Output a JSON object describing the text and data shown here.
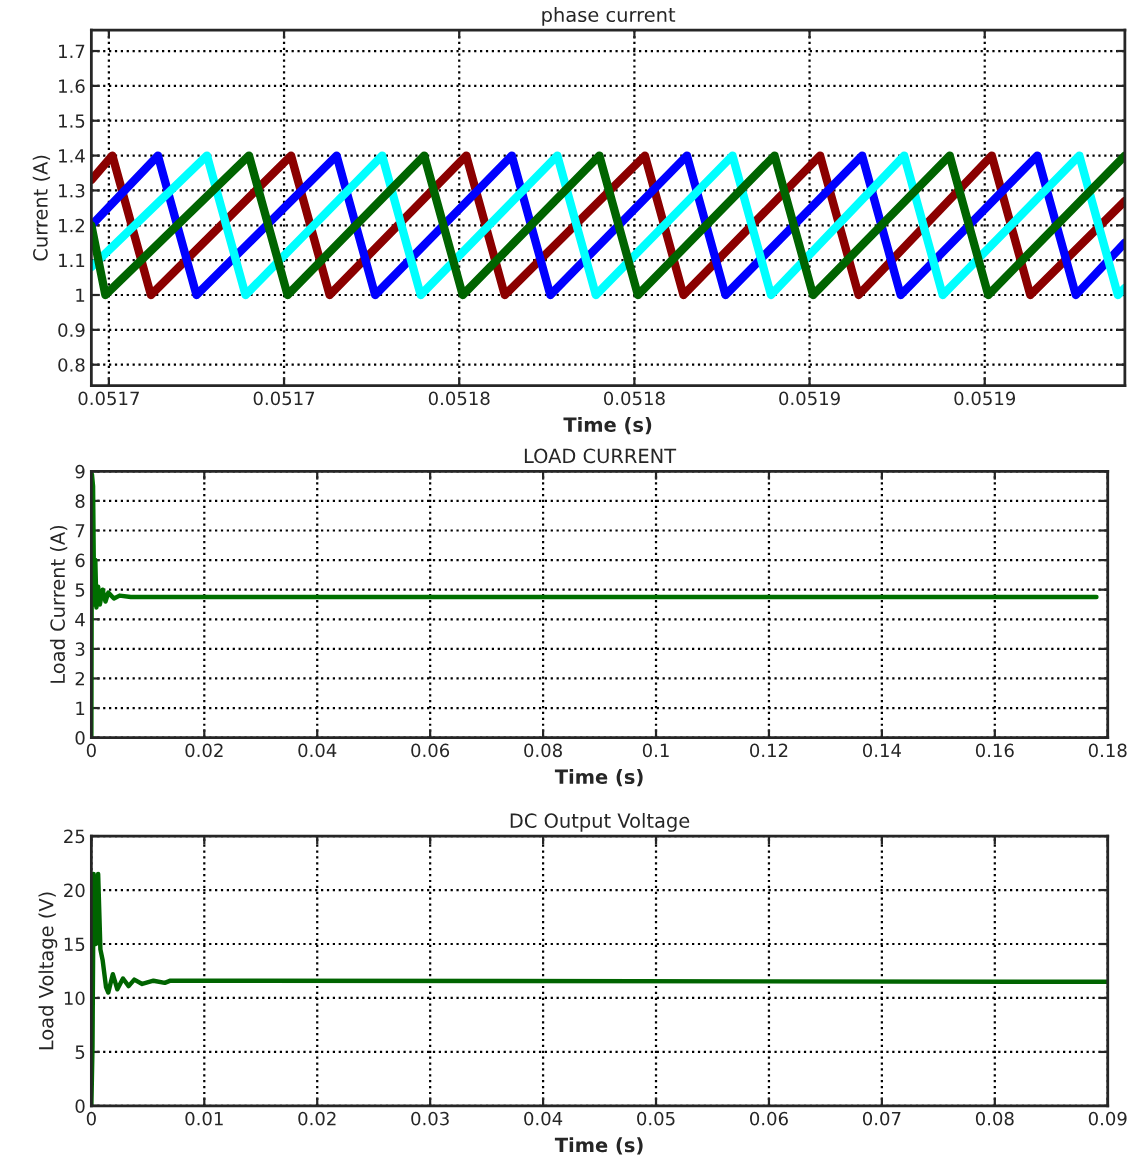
{
  "chart_data": [
    {
      "type": "line",
      "title": "phase current",
      "xlabel": "Time (s)",
      "ylabel": "Current (A)",
      "grid": true,
      "xlim": [
        0.051695,
        0.05199
      ],
      "xticks": [
        {
          "value": 0.0517,
          "label": "0.0517"
        },
        {
          "value": 0.05175,
          "label": "0.0517"
        },
        {
          "value": 0.0518,
          "label": "0.0518"
        },
        {
          "value": 0.05185,
          "label": "0.0518"
        },
        {
          "value": 0.0519,
          "label": "0.0519"
        },
        {
          "value": 0.05195,
          "label": "0.0519"
        }
      ],
      "ylim": [
        0.74,
        1.76
      ],
      "yticks": [
        0.8,
        0.9,
        1,
        1.1,
        1.2,
        1.3,
        1.4,
        1.5,
        1.6,
        1.7
      ],
      "series": [
        {
          "color": "#8b0000",
          "x": [
            0.051695,
            0.051701,
            0.051712,
            0.051752,
            0.051763,
            0.051802,
            0.051813,
            0.051853,
            0.051864,
            0.051903,
            0.051914,
            0.051952,
            0.051963,
            0.05199
          ],
          "values": [
            1.33,
            1.4,
            1.0,
            1.4,
            1.0,
            1.4,
            1.0,
            1.4,
            1.0,
            1.4,
            1.0,
            1.4,
            1.0,
            1.27
          ]
        },
        {
          "color": "#0000ff",
          "x": [
            0.051695,
            0.051714,
            0.051725,
            0.051765,
            0.051776,
            0.051815,
            0.051826,
            0.051865,
            0.051876,
            0.051915,
            0.051926,
            0.051965,
            0.051976,
            0.05199
          ],
          "values": [
            1.2,
            1.4,
            1.0,
            1.4,
            1.0,
            1.4,
            1.0,
            1.4,
            1.0,
            1.4,
            1.0,
            1.4,
            1.0,
            1.15
          ]
        },
        {
          "color": "#00ffff",
          "x": [
            0.051695,
            0.051728,
            0.051739,
            0.051778,
            0.051789,
            0.051828,
            0.051839,
            0.051878,
            0.051889,
            0.051927,
            0.051938,
            0.051977,
            0.051988,
            0.05199
          ],
          "values": [
            1.08,
            1.4,
            1.0,
            1.4,
            1.0,
            1.4,
            1.0,
            1.4,
            1.0,
            1.4,
            1.0,
            1.4,
            1.0,
            1.02
          ]
        },
        {
          "color": "#006400",
          "x": [
            0.051695,
            0.051699,
            0.05174,
            0.051751,
            0.05179,
            0.051801,
            0.05184,
            0.051851,
            0.05189,
            0.051901,
            0.05194,
            0.051951,
            0.05199
          ],
          "values": [
            1.2,
            1.0,
            1.4,
            1.0,
            1.4,
            1.0,
            1.4,
            1.0,
            1.4,
            1.0,
            1.4,
            1.0,
            1.4
          ]
        }
      ]
    },
    {
      "type": "line",
      "title": "LOAD CURRENT",
      "xlabel": "Time (s)",
      "ylabel": "Load Current (A)",
      "grid": true,
      "xlim": [
        0,
        0.18
      ],
      "xticks": [
        0,
        0.02,
        0.04,
        0.06,
        0.08,
        0.1,
        0.12,
        0.14,
        0.16,
        0.18
      ],
      "ylim": [
        0,
        9
      ],
      "yticks": [
        0,
        1,
        2,
        3,
        4,
        5,
        6,
        7,
        8,
        9
      ],
      "series": [
        {
          "color": "#007000",
          "x": [
            0,
            0.0001,
            0.0003,
            0.0005,
            0.0007,
            0.0009,
            0.0012,
            0.0015,
            0.002,
            0.0025,
            0.003,
            0.004,
            0.005,
            0.007,
            0.178
          ],
          "values": [
            0,
            8.9,
            8.5,
            4.5,
            6.0,
            4.4,
            5.1,
            4.5,
            5.0,
            4.6,
            4.9,
            4.7,
            4.8,
            4.75,
            4.75
          ]
        }
      ]
    },
    {
      "type": "line",
      "title": "DC Output Voltage",
      "xlabel": "Time (s)",
      "ylabel": "Load Voltage (V)",
      "grid": true,
      "xlim": [
        0,
        0.09
      ],
      "xticks": [
        0,
        0.01,
        0.02,
        0.03,
        0.04,
        0.05,
        0.06,
        0.07,
        0.08,
        0.09
      ],
      "ylim": [
        0,
        25
      ],
      "yticks": [
        0,
        5,
        10,
        15,
        20,
        25
      ],
      "series": [
        {
          "color": "#006400",
          "x": [
            0,
            0.0001,
            0.0002,
            0.0004,
            0.0006,
            0.0008,
            0.001,
            0.0013,
            0.0015,
            0.0019,
            0.0023,
            0.0028,
            0.0033,
            0.0038,
            0.0045,
            0.0055,
            0.0065,
            0.007,
            0.09
          ],
          "values": [
            0,
            5.5,
            21.5,
            15,
            21.5,
            14.5,
            13.5,
            11,
            10.5,
            12.2,
            10.8,
            11.8,
            11.1,
            11.7,
            11.3,
            11.6,
            11.4,
            11.6,
            11.5
          ]
        }
      ]
    }
  ]
}
